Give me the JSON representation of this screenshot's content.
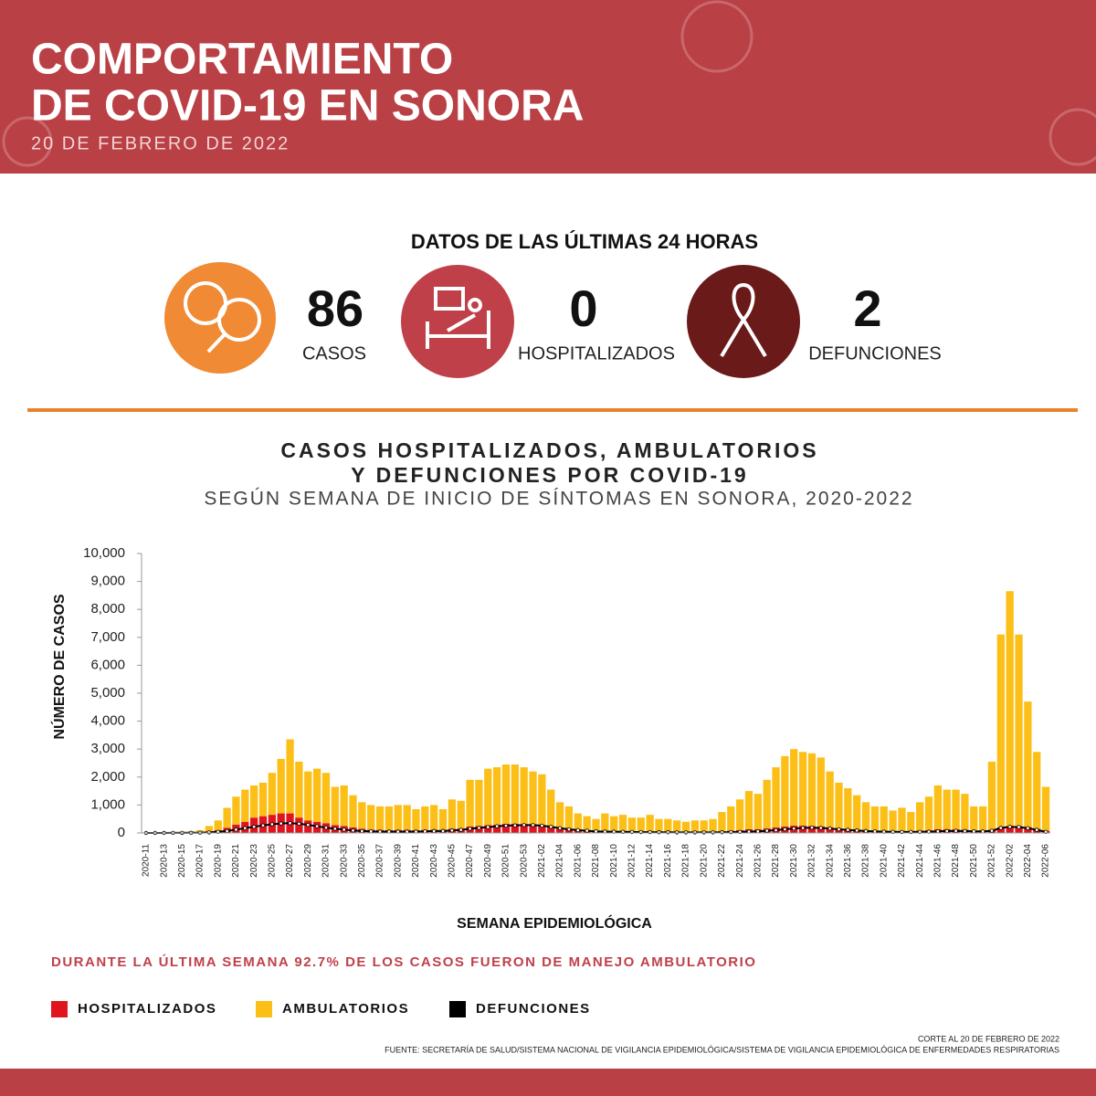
{
  "header": {
    "title_line1": "COMPORTAMIENTO",
    "title_line2": "DE COVID-19 EN SONORA",
    "date": "20 DE FEBRERO DE 2022"
  },
  "stats": {
    "heading": "DATOS DE LAS ÚLTIMAS 24 HORAS",
    "items": [
      {
        "value": 86,
        "label": "CASOS"
      },
      {
        "value": 0,
        "label": "HOSPITALIZADOS"
      },
      {
        "value": 2,
        "label": "DEFUNCIONES"
      }
    ]
  },
  "chart_data": {
    "type": "bar",
    "stacked": true,
    "title_line1": "CASOS HOSPITALIZADOS, AMBULATORIOS",
    "title_line2": "Y DEFUNCIONES POR COVID-19",
    "subtitle": "SEGÚN SEMANA DE INICIO DE SÍNTOMAS EN SONORA, 2020-2022",
    "ylabel": "NÚMERO DE CASOS",
    "xlabel": "SEMANA EPIDEMIOLÓGICA",
    "ylim": [
      0,
      10000
    ],
    "yticks": [
      0,
      {
        "value": 1000,
        "label": "1,000"
      },
      {
        "value": 2000,
        "label": "2,000"
      },
      {
        "value": 3000,
        "label": "3,000"
      },
      {
        "value": 4000,
        "label": "4,000"
      },
      {
        "value": 5000,
        "label": "5,000"
      },
      {
        "value": 6000,
        "label": "6,000"
      },
      {
        "value": 7000,
        "label": "7,000"
      },
      {
        "value": 8000,
        "label": "8,000"
      },
      {
        "value": 9000,
        "label": "9,000"
      },
      {
        "value": 10000,
        "label": "10,000"
      }
    ],
    "categories": [
      "2020-11",
      null,
      "2020-13",
      null,
      "2020-15",
      null,
      "2020-17",
      null,
      "2020-19",
      null,
      "2020-21",
      null,
      "2020-23",
      null,
      "2020-25",
      null,
      "2020-27",
      null,
      "2020-29",
      null,
      "2020-31",
      null,
      "2020-33",
      null,
      "2020-35",
      null,
      "2020-37",
      null,
      "2020-39",
      null,
      "2020-41",
      null,
      "2020-43",
      null,
      "2020-45",
      null,
      "2020-47",
      null,
      "2020-49",
      null,
      "2020-51",
      null,
      "2020-53",
      null,
      "2021-02",
      null,
      "2021-04",
      null,
      "2021-06",
      null,
      "2021-08",
      null,
      "2021-10",
      null,
      "2021-12",
      null,
      "2021-14",
      null,
      "2021-16",
      null,
      "2021-18",
      null,
      "2021-20",
      null,
      "2021-22",
      null,
      "2021-24",
      null,
      "2021-26",
      null,
      "2021-28",
      null,
      "2021-30",
      null,
      "2021-32",
      null,
      "2021-34",
      null,
      "2021-36",
      null,
      "2021-38",
      null,
      "2021-40",
      null,
      "2021-42",
      null,
      "2021-44",
      null,
      "2021-46",
      null,
      "2021-48",
      null,
      "2021-50",
      null,
      "2021-52",
      null,
      "2022-02",
      null,
      "2022-04",
      null,
      "2022-06"
    ],
    "series": [
      {
        "name": "HOSPITALIZADOS",
        "color": "#e0141e",
        "values": [
          5,
          5,
          10,
          15,
          20,
          25,
          40,
          60,
          100,
          180,
          300,
          400,
          550,
          600,
          650,
          700,
          700,
          550,
          450,
          400,
          350,
          280,
          250,
          200,
          150,
          120,
          110,
          100,
          110,
          110,
          100,
          110,
          120,
          110,
          150,
          160,
          230,
          250,
          280,
          300,
          330,
          330,
          320,
          300,
          280,
          220,
          160,
          130,
          100,
          80,
          70,
          80,
          70,
          70,
          60,
          60,
          60,
          50,
          50,
          40,
          40,
          40,
          40,
          40,
          60,
          80,
          100,
          130,
          130,
          160,
          200,
          230,
          260,
          260,
          250,
          230,
          190,
          150,
          130,
          110,
          90,
          80,
          80,
          70,
          70,
          60,
          80,
          100,
          130,
          130,
          130,
          120,
          90,
          80,
          120,
          200,
          250,
          250,
          220,
          150,
          80
        ]
      },
      {
        "name": "AMBULATORIOS",
        "color": "#fbbf17",
        "values": [
          15,
          15,
          20,
          25,
          30,
          35,
          60,
          190,
          350,
          720,
          1000,
          1150,
          1150,
          1200,
          1500,
          1950,
          2650,
          2000,
          1750,
          1900,
          1800,
          1370,
          1450,
          1150,
          950,
          880,
          840,
          850,
          890,
          890,
          750,
          840,
          880,
          740,
          1050,
          990,
          1670,
          1650,
          2020,
          2050,
          2120,
          2120,
          2030,
          1900,
          1820,
          1330,
          940,
          820,
          600,
          520,
          430,
          620,
          530,
          580,
          490,
          490,
          590,
          450,
          450,
          410,
          360,
          410,
          410,
          460,
          690,
          870,
          1100,
          1370,
          1270,
          1740,
          2150,
          2520,
          2740,
          2640,
          2600,
          2470,
          2010,
          1650,
          1470,
          1240,
          1010,
          870,
          870,
          730,
          830,
          690,
          1020,
          1200,
          1570,
          1420,
          1420,
          1280,
          860,
          870,
          2430,
          6900,
          8400,
          6850,
          4480,
          2750,
          1570
        ]
      },
      {
        "name": "DEFUNCIONES",
        "color": "#000000",
        "type": "line",
        "values": [
          0,
          0,
          1,
          2,
          3,
          5,
          10,
          20,
          40,
          70,
          120,
          170,
          220,
          270,
          310,
          340,
          350,
          330,
          290,
          240,
          190,
          150,
          120,
          90,
          70,
          60,
          50,
          50,
          50,
          50,
          50,
          60,
          70,
          70,
          90,
          110,
          150,
          180,
          210,
          240,
          260,
          270,
          280,
          280,
          260,
          220,
          170,
          130,
          100,
          80,
          60,
          50,
          45,
          40,
          35,
          30,
          30,
          25,
          25,
          20,
          20,
          20,
          20,
          20,
          25,
          30,
          40,
          50,
          60,
          80,
          100,
          130,
          160,
          180,
          190,
          180,
          160,
          130,
          110,
          90,
          70,
          55,
          45,
          40,
          35,
          35,
          40,
          45,
          60,
          70,
          75,
          70,
          60,
          55,
          80,
          180,
          220,
          210,
          170,
          110,
          40
        ]
      }
    ]
  },
  "note": "DURANTE LA ÚLTIMA SEMANA 92.7% DE LOS CASOS FUERON DE MANEJO AMBULATORIO",
  "footer": {
    "cut": "CORTE AL 20 DE FEBRERO DE 2022",
    "source": "FUENTE: SECRETARÍA DE SALUD/SISTEMA NACIONAL DE VIGILANCIA EPIDEMIOLÓGICA/SISTEMA DE VIGILANCIA EPIDEMIOLÓGICA DE ENFERMEDADES RESPIRATORIAS"
  }
}
